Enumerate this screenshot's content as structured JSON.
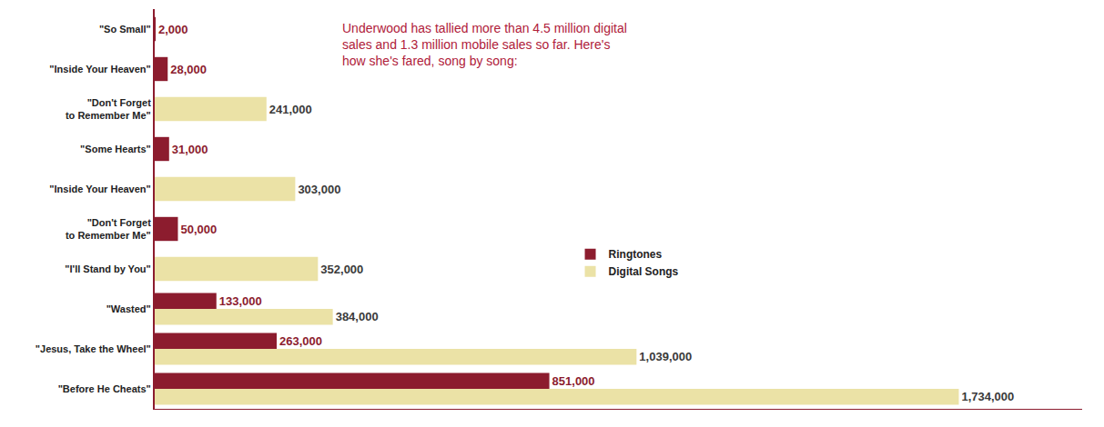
{
  "chart_data": {
    "type": "bar",
    "orientation": "horizontal",
    "annotations": [
      "Underwood has tallied more than 4.5 million digital sales and 1.3 million mobile sales so far. Here's how she's fared, song by song:"
    ],
    "categories": [
      "\"So Small\"",
      "\"Inside Your Heaven\"",
      "\"Don't Forget to Remember Me\"",
      "\"Some Hearts\"",
      "\"Inside Your Heaven\"",
      "\"Don't Forget to Remember Me\"",
      "\"I'll Stand by You\"",
      "\"Wasted\"",
      "\"Jesus, Take the Wheel\"",
      "\"Before He Cheats\""
    ],
    "series": [
      {
        "name": "Ringtones",
        "color": "#8c1c2e",
        "values": [
          2000,
          28000,
          null,
          31000,
          null,
          50000,
          null,
          133000,
          263000,
          851000
        ],
        "value_labels": [
          "2,000",
          "28,000",
          null,
          "31,000",
          null,
          "50,000",
          null,
          "133,000",
          "263,000",
          "851,000"
        ]
      },
      {
        "name": "Digital Songs",
        "color": "#ebe2a6",
        "values": [
          null,
          null,
          241000,
          null,
          303000,
          null,
          352000,
          384000,
          1039000,
          1734000
        ],
        "value_labels": [
          null,
          null,
          "241,000",
          null,
          "303,000",
          null,
          "352,000",
          "384,000",
          "1,039,000",
          "1,734,000"
        ]
      }
    ],
    "xlim": [
      0,
      2000000
    ],
    "data_labels": true,
    "legend": "center",
    "tick_labels": "y",
    "grid": false
  }
}
